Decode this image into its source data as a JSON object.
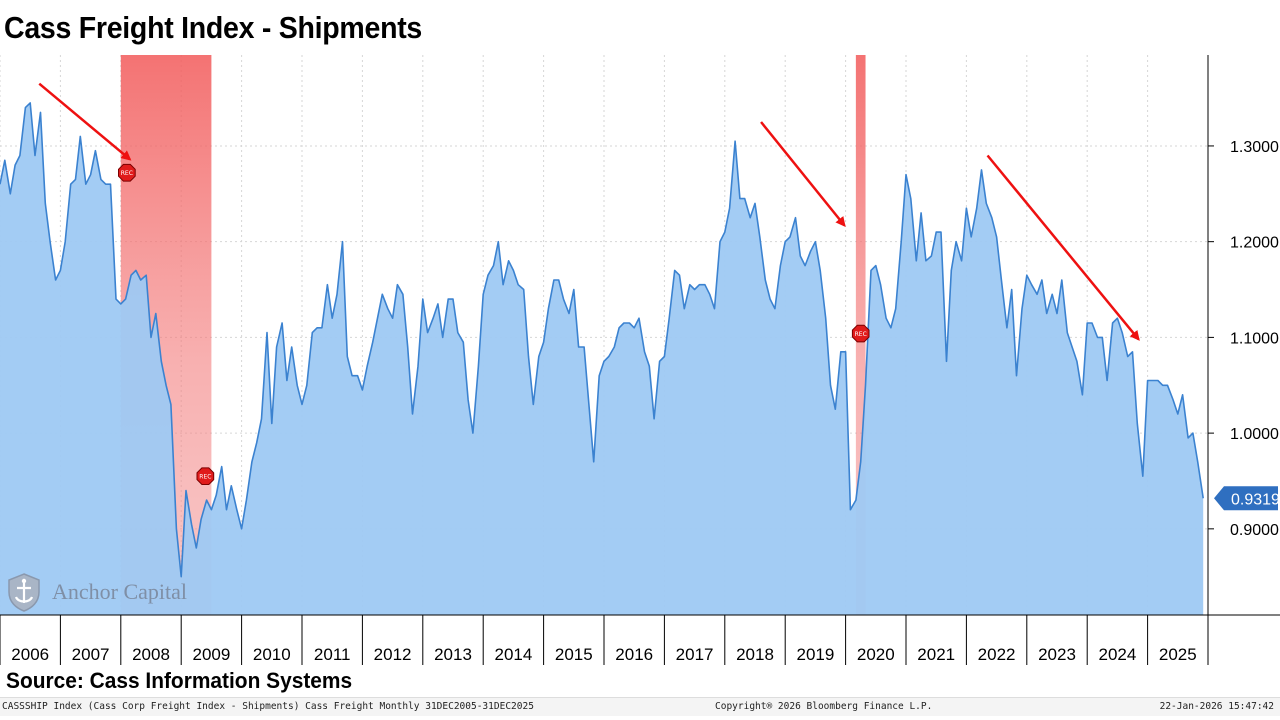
{
  "title": "Cass Freight Index - Shipments",
  "source": "Source: Cass Information Systems",
  "footer": {
    "left": "CASSSHIP Index (Cass Corp Freight Index - Shipments) Cass Freight Monthly 31DEC2005-31DEC2025",
    "center": "Copyright® 2026 Bloomberg Finance L.P.",
    "right": "22-Jan-2026 15:47:42"
  },
  "watermark": "Anchor Capital",
  "colors": {
    "line": "#3b82d0",
    "area": "#9ec9f3",
    "recession": "#f25a5a",
    "arrow": "#ee1111",
    "last_value_tag": "#2f6fc0"
  },
  "chart_data": {
    "type": "area",
    "title": "Cass Freight Index - Shipments",
    "xlabel": "",
    "ylabel": "",
    "ylim": [
      0.81,
      1.395
    ],
    "yticks": [
      0.9,
      1.0,
      1.1,
      1.2,
      1.3
    ],
    "ytick_labels": [
      "0.9000",
      "1.0000",
      "1.1000",
      "1.2000",
      "1.3000"
    ],
    "y_axis_side": "right",
    "x_range": [
      2006.0,
      2026.0
    ],
    "x_tick_labels": [
      "2006",
      "2007",
      "2008",
      "2009",
      "2010",
      "2011",
      "2012",
      "2013",
      "2014",
      "2015",
      "2016",
      "2017",
      "2018",
      "2019",
      "2020",
      "2021",
      "2022",
      "2023",
      "2024",
      "2025"
    ],
    "grid": true,
    "last_value": 0.9319,
    "last_value_label": "0.9319",
    "recession_marker_label": "REC",
    "recessions": [
      {
        "start": 2008.0,
        "end": 2009.5,
        "markers": [
          {
            "x": 2008.1,
            "y": 1.272
          },
          {
            "x": 2009.4,
            "y": 0.955
          }
        ]
      },
      {
        "start": 2020.17,
        "end": 2020.33,
        "markers": [
          {
            "x": 2020.25,
            "y": 1.104
          }
        ]
      }
    ],
    "trend_arrows": [
      {
        "from": [
          2006.65,
          1.365
        ],
        "to": [
          2008.15,
          1.286
        ]
      },
      {
        "from": [
          2018.6,
          1.325
        ],
        "to": [
          2019.98,
          1.217
        ]
      },
      {
        "from": [
          2022.35,
          1.29
        ],
        "to": [
          2024.85,
          1.098
        ]
      }
    ],
    "series": [
      {
        "name": "CASSSHIP Index",
        "x": [
          2006.0,
          2006.08,
          2006.17,
          2006.25,
          2006.33,
          2006.42,
          2006.5,
          2006.58,
          2006.67,
          2006.75,
          2006.83,
          2006.92,
          2007.0,
          2007.08,
          2007.17,
          2007.25,
          2007.33,
          2007.42,
          2007.5,
          2007.58,
          2007.67,
          2007.75,
          2007.83,
          2007.92,
          2008.0,
          2008.08,
          2008.17,
          2008.25,
          2008.33,
          2008.42,
          2008.5,
          2008.58,
          2008.67,
          2008.75,
          2008.83,
          2008.92,
          2009.0,
          2009.08,
          2009.17,
          2009.25,
          2009.33,
          2009.42,
          2009.5,
          2009.58,
          2009.67,
          2009.75,
          2009.83,
          2009.92,
          2010.0,
          2010.08,
          2010.17,
          2010.25,
          2010.33,
          2010.42,
          2010.5,
          2010.58,
          2010.67,
          2010.75,
          2010.83,
          2010.92,
          2011.0,
          2011.08,
          2011.17,
          2011.25,
          2011.33,
          2011.42,
          2011.5,
          2011.58,
          2011.67,
          2011.75,
          2011.83,
          2011.92,
          2012.0,
          2012.08,
          2012.17,
          2012.25,
          2012.33,
          2012.42,
          2012.5,
          2012.58,
          2012.67,
          2012.75,
          2012.83,
          2012.92,
          2013.0,
          2013.08,
          2013.17,
          2013.25,
          2013.33,
          2013.42,
          2013.5,
          2013.58,
          2013.67,
          2013.75,
          2013.83,
          2013.92,
          2014.0,
          2014.08,
          2014.17,
          2014.25,
          2014.33,
          2014.42,
          2014.5,
          2014.58,
          2014.67,
          2014.75,
          2014.83,
          2014.92,
          2015.0,
          2015.08,
          2015.17,
          2015.25,
          2015.33,
          2015.42,
          2015.5,
          2015.58,
          2015.67,
          2015.75,
          2015.83,
          2015.92,
          2016.0,
          2016.08,
          2016.17,
          2016.25,
          2016.33,
          2016.42,
          2016.5,
          2016.58,
          2016.67,
          2016.75,
          2016.83,
          2016.92,
          2017.0,
          2017.08,
          2017.17,
          2017.25,
          2017.33,
          2017.42,
          2017.5,
          2017.58,
          2017.67,
          2017.75,
          2017.83,
          2017.92,
          2018.0,
          2018.08,
          2018.17,
          2018.25,
          2018.33,
          2018.42,
          2018.5,
          2018.58,
          2018.67,
          2018.75,
          2018.83,
          2018.92,
          2019.0,
          2019.08,
          2019.17,
          2019.25,
          2019.33,
          2019.42,
          2019.5,
          2019.58,
          2019.67,
          2019.75,
          2019.83,
          2019.92,
          2020.0,
          2020.08,
          2020.17,
          2020.25,
          2020.33,
          2020.42,
          2020.5,
          2020.58,
          2020.67,
          2020.75,
          2020.83,
          2020.92,
          2021.0,
          2021.08,
          2021.17,
          2021.25,
          2021.33,
          2021.42,
          2021.5,
          2021.58,
          2021.67,
          2021.75,
          2021.83,
          2021.92,
          2022.0,
          2022.08,
          2022.17,
          2022.25,
          2022.33,
          2022.42,
          2022.5,
          2022.58,
          2022.67,
          2022.75,
          2022.83,
          2022.92,
          2023.0,
          2023.08,
          2023.17,
          2023.25,
          2023.33,
          2023.42,
          2023.5,
          2023.58,
          2023.67,
          2023.75,
          2023.83,
          2023.92,
          2024.0,
          2024.08,
          2024.17,
          2024.25,
          2024.33,
          2024.42,
          2024.5,
          2024.58,
          2024.67,
          2024.75,
          2024.83,
          2024.92,
          2025.0,
          2025.08,
          2025.17,
          2025.25,
          2025.33,
          2025.42,
          2025.5,
          2025.58,
          2025.67,
          2025.75,
          2025.83,
          2025.92
        ],
        "values": [
          1.26,
          1.285,
          1.25,
          1.28,
          1.29,
          1.34,
          1.345,
          1.29,
          1.335,
          1.24,
          1.2,
          1.16,
          1.17,
          1.2,
          1.26,
          1.265,
          1.31,
          1.26,
          1.27,
          1.295,
          1.265,
          1.26,
          1.26,
          1.14,
          1.135,
          1.14,
          1.165,
          1.17,
          1.16,
          1.165,
          1.1,
          1.125,
          1.075,
          1.05,
          1.03,
          0.9,
          0.85,
          0.94,
          0.905,
          0.88,
          0.91,
          0.93,
          0.92,
          0.935,
          0.965,
          0.92,
          0.945,
          0.92,
          0.9,
          0.93,
          0.97,
          0.99,
          1.015,
          1.105,
          1.01,
          1.09,
          1.115,
          1.055,
          1.09,
          1.05,
          1.03,
          1.05,
          1.105,
          1.11,
          1.11,
          1.155,
          1.12,
          1.145,
          1.2,
          1.08,
          1.06,
          1.06,
          1.045,
          1.07,
          1.095,
          1.12,
          1.145,
          1.13,
          1.12,
          1.155,
          1.145,
          1.09,
          1.02,
          1.07,
          1.14,
          1.105,
          1.12,
          1.135,
          1.1,
          1.14,
          1.14,
          1.105,
          1.095,
          1.035,
          1.0,
          1.07,
          1.145,
          1.165,
          1.175,
          1.2,
          1.155,
          1.18,
          1.17,
          1.155,
          1.15,
          1.08,
          1.03,
          1.08,
          1.095,
          1.13,
          1.16,
          1.16,
          1.14,
          1.125,
          1.15,
          1.09,
          1.09,
          1.03,
          0.97,
          1.06,
          1.075,
          1.08,
          1.09,
          1.11,
          1.115,
          1.115,
          1.11,
          1.12,
          1.085,
          1.07,
          1.015,
          1.075,
          1.08,
          1.12,
          1.17,
          1.165,
          1.13,
          1.155,
          1.15,
          1.155,
          1.155,
          1.145,
          1.13,
          1.2,
          1.21,
          1.235,
          1.305,
          1.245,
          1.245,
          1.225,
          1.24,
          1.205,
          1.16,
          1.14,
          1.13,
          1.175,
          1.2,
          1.205,
          1.225,
          1.185,
          1.175,
          1.19,
          1.2,
          1.17,
          1.12,
          1.05,
          1.025,
          1.085,
          1.085,
          0.92,
          0.93,
          0.97,
          1.05,
          1.17,
          1.175,
          1.155,
          1.12,
          1.11,
          1.13,
          1.2,
          1.27,
          1.245,
          1.18,
          1.23,
          1.18,
          1.185,
          1.21,
          1.21,
          1.075,
          1.17,
          1.2,
          1.18,
          1.235,
          1.205,
          1.235,
          1.275,
          1.24,
          1.225,
          1.205,
          1.16,
          1.11,
          1.15,
          1.06,
          1.13,
          1.165,
          1.155,
          1.145,
          1.16,
          1.125,
          1.145,
          1.125,
          1.16,
          1.105,
          1.09,
          1.075,
          1.04,
          1.115,
          1.115,
          1.1,
          1.1,
          1.055,
          1.115,
          1.12,
          1.105,
          1.08,
          1.085,
          1.01,
          0.955,
          1.055,
          1.055,
          1.055,
          1.05,
          1.05,
          1.035,
          1.02,
          1.04,
          0.995,
          1.0,
          0.97,
          0.9319
        ]
      }
    ]
  }
}
